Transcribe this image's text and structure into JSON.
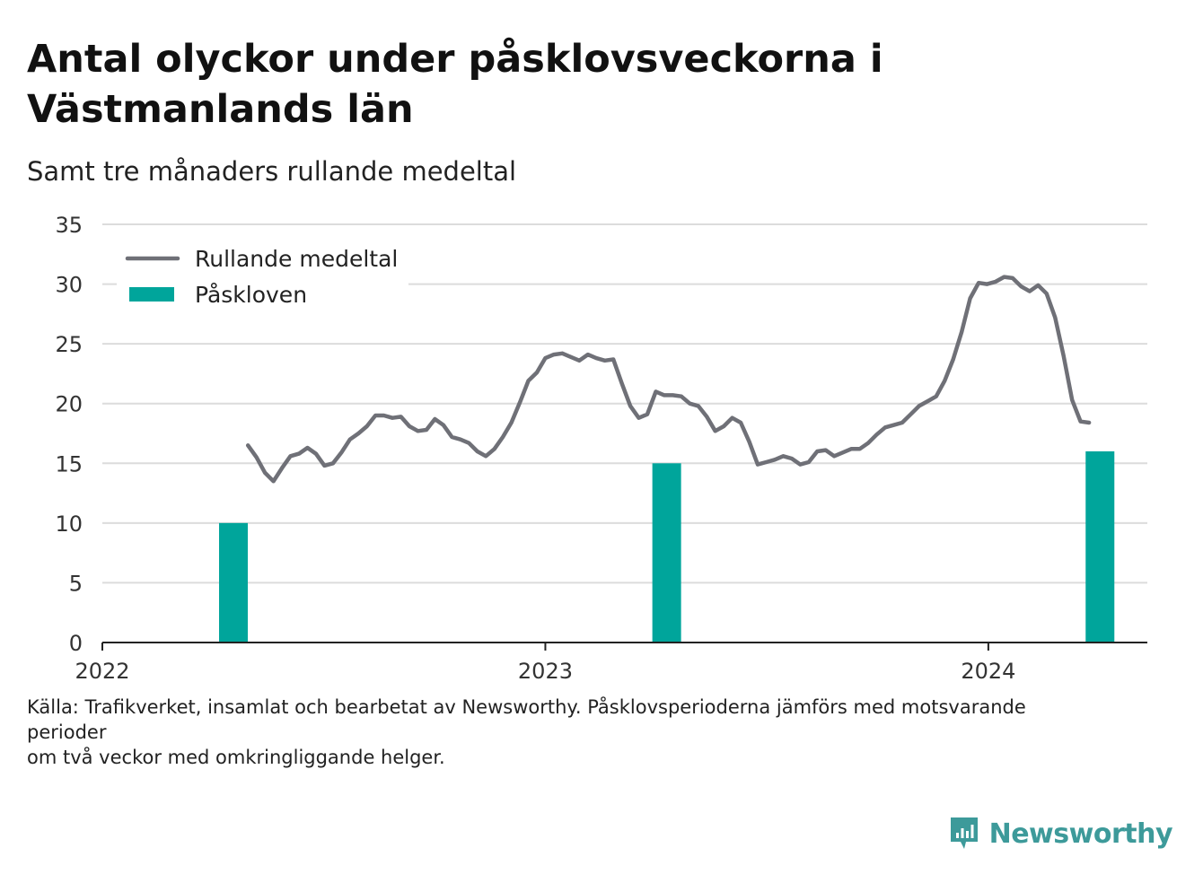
{
  "title": "Antal olyckor under påsklovsveckorna i Västmanlands län",
  "subtitle": "Samt tre månaders rullande medeltal",
  "source": {
    "line1": "Källa: Trafikverket, insamlat och bearbetat av Newsworthy. Påsklovsperioderna jämförs med motsvarande perioder",
    "line2": "om två veckor med omkringliggande helger."
  },
  "brand": "Newsworthy",
  "colors": {
    "line": "#6f7077",
    "bar": "#00a59b",
    "grid": "#dcdcdc",
    "axis": "#222222",
    "brand": "#3d9a9a"
  },
  "chart_data": {
    "type": "line+bar",
    "x_type": "date",
    "xlim": [
      "2022-01-01",
      "2024-05-11"
    ],
    "ylim": [
      0,
      35
    ],
    "yticks": [
      0,
      5,
      10,
      15,
      20,
      25,
      30,
      35
    ],
    "xticks": [
      "2022",
      "2023",
      "2024"
    ],
    "grid": true,
    "legend_position": "top-left",
    "legend": [
      "Rullande medeltal",
      "Påskloven"
    ],
    "series": [
      {
        "name": "Rullande medeltal",
        "kind": "line",
        "points": [
          [
            "2022-05-01",
            16.5
          ],
          [
            "2022-05-08",
            15.5
          ],
          [
            "2022-05-15",
            14.2
          ],
          [
            "2022-05-22",
            13.5
          ],
          [
            "2022-05-29",
            14.6
          ],
          [
            "2022-06-05",
            15.6
          ],
          [
            "2022-06-12",
            15.8
          ],
          [
            "2022-06-19",
            16.3
          ],
          [
            "2022-06-26",
            15.8
          ],
          [
            "2022-07-03",
            14.8
          ],
          [
            "2022-07-10",
            15.0
          ],
          [
            "2022-07-17",
            15.9
          ],
          [
            "2022-07-24",
            17.0
          ],
          [
            "2022-07-31",
            17.5
          ],
          [
            "2022-08-07",
            18.1
          ],
          [
            "2022-08-14",
            19.0
          ],
          [
            "2022-08-21",
            19.0
          ],
          [
            "2022-08-28",
            18.8
          ],
          [
            "2022-09-04",
            18.9
          ],
          [
            "2022-09-11",
            18.1
          ],
          [
            "2022-09-18",
            17.7
          ],
          [
            "2022-09-25",
            17.8
          ],
          [
            "2022-10-02",
            18.7
          ],
          [
            "2022-10-09",
            18.2
          ],
          [
            "2022-10-16",
            17.2
          ],
          [
            "2022-10-23",
            17.0
          ],
          [
            "2022-10-30",
            16.7
          ],
          [
            "2022-11-06",
            16.0
          ],
          [
            "2022-11-13",
            15.6
          ],
          [
            "2022-11-20",
            16.2
          ],
          [
            "2022-11-27",
            17.2
          ],
          [
            "2022-12-04",
            18.4
          ],
          [
            "2022-12-11",
            20.1
          ],
          [
            "2022-12-18",
            21.9
          ],
          [
            "2022-12-25",
            22.6
          ],
          [
            "2023-01-01",
            23.8
          ],
          [
            "2023-01-08",
            24.1
          ],
          [
            "2023-01-15",
            24.2
          ],
          [
            "2023-01-22",
            23.9
          ],
          [
            "2023-01-29",
            23.6
          ],
          [
            "2023-02-05",
            24.1
          ],
          [
            "2023-02-12",
            23.8
          ],
          [
            "2023-02-19",
            23.6
          ],
          [
            "2023-02-26",
            23.7
          ],
          [
            "2023-03-05",
            21.7
          ],
          [
            "2023-03-12",
            19.8
          ],
          [
            "2023-03-19",
            18.8
          ],
          [
            "2023-03-26",
            19.1
          ],
          [
            "2023-04-02",
            21.0
          ],
          [
            "2023-04-09",
            20.7
          ],
          [
            "2023-04-16",
            20.7
          ],
          [
            "2023-04-23",
            20.6
          ],
          [
            "2023-04-30",
            20.0
          ],
          [
            "2023-05-07",
            19.8
          ],
          [
            "2023-05-14",
            18.9
          ],
          [
            "2023-05-21",
            17.7
          ],
          [
            "2023-05-28",
            18.1
          ],
          [
            "2023-06-04",
            18.8
          ],
          [
            "2023-06-11",
            18.4
          ],
          [
            "2023-06-18",
            16.8
          ],
          [
            "2023-06-25",
            14.9
          ],
          [
            "2023-07-02",
            15.1
          ],
          [
            "2023-07-09",
            15.3
          ],
          [
            "2023-07-16",
            15.6
          ],
          [
            "2023-07-23",
            15.4
          ],
          [
            "2023-07-30",
            14.9
          ],
          [
            "2023-08-06",
            15.1
          ],
          [
            "2023-08-13",
            16.0
          ],
          [
            "2023-08-20",
            16.1
          ],
          [
            "2023-08-27",
            15.6
          ],
          [
            "2023-09-03",
            15.9
          ],
          [
            "2023-09-10",
            16.2
          ],
          [
            "2023-09-17",
            16.2
          ],
          [
            "2023-09-24",
            16.7
          ],
          [
            "2023-10-01",
            17.4
          ],
          [
            "2023-10-08",
            18.0
          ],
          [
            "2023-10-15",
            18.2
          ],
          [
            "2023-10-22",
            18.4
          ],
          [
            "2023-10-29",
            19.1
          ],
          [
            "2023-11-05",
            19.8
          ],
          [
            "2023-11-12",
            20.2
          ],
          [
            "2023-11-19",
            20.6
          ],
          [
            "2023-11-26",
            21.9
          ],
          [
            "2023-12-03",
            23.7
          ],
          [
            "2023-12-10",
            26.0
          ],
          [
            "2023-12-17",
            28.8
          ],
          [
            "2023-12-24",
            30.1
          ],
          [
            "2023-12-31",
            30.0
          ],
          [
            "2024-01-07",
            30.2
          ],
          [
            "2024-01-14",
            30.6
          ],
          [
            "2024-01-21",
            30.5
          ],
          [
            "2024-01-28",
            29.8
          ],
          [
            "2024-02-04",
            29.4
          ],
          [
            "2024-02-11",
            29.9
          ],
          [
            "2024-02-18",
            29.2
          ],
          [
            "2024-02-25",
            27.2
          ],
          [
            "2024-03-03",
            24.0
          ],
          [
            "2024-03-10",
            20.3
          ],
          [
            "2024-03-17",
            18.5
          ],
          [
            "2024-03-24",
            18.4
          ]
        ]
      },
      {
        "name": "Påskloven",
        "kind": "bar",
        "points": [
          [
            "2022-04-19",
            10
          ],
          [
            "2023-04-11",
            15
          ],
          [
            "2024-04-02",
            16
          ]
        ]
      }
    ]
  }
}
